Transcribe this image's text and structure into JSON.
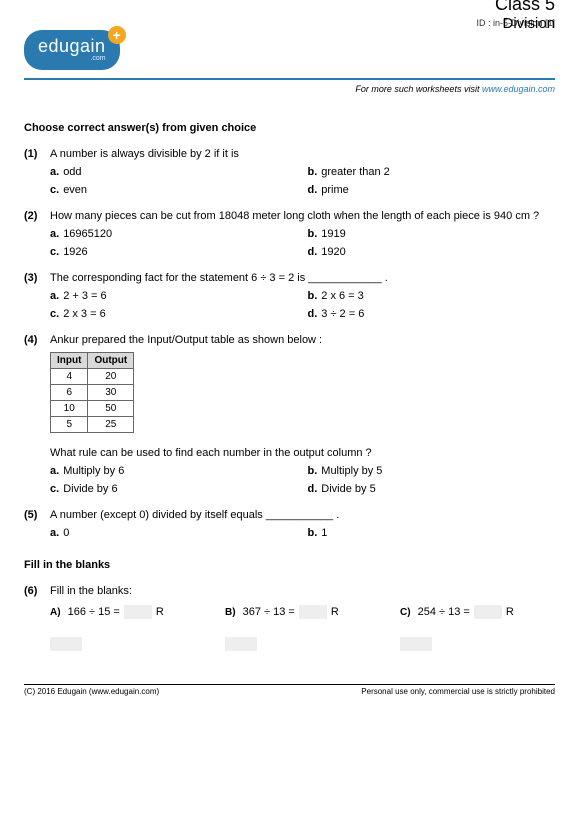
{
  "header": {
    "id_line": "ID : in-5-Division [1]",
    "logo_text": "edugain",
    "logo_sub": ".com",
    "logo_plus": "+",
    "class_title": "Class 5",
    "topic_title": "Division",
    "visit_prefix": "For more such worksheets visit ",
    "visit_link": "www.edugain.com"
  },
  "sections": {
    "mcq_title": "Choose correct answer(s) from given choice",
    "fill_title": "Fill in the blanks"
  },
  "q1": {
    "num": "(1)",
    "text": "A number is always divisible by 2 if it is",
    "a": "a.",
    "a_text": "odd",
    "b": "b.",
    "b_text": "greater than 2",
    "c": "c.",
    "c_text": "even",
    "d": "d.",
    "d_text": "prime"
  },
  "q2": {
    "num": "(2)",
    "text": "How many pieces can be cut from 18048 meter long cloth when the length of each piece is 940 cm ?",
    "a": "a.",
    "a_text": "16965120",
    "b": "b.",
    "b_text": "1919",
    "c": "c.",
    "c_text": "1926",
    "d": "d.",
    "d_text": "1920"
  },
  "q3": {
    "num": "(3)",
    "text": "The corresponding fact for the statement 6 ÷ 3 = 2 is ____________ .",
    "a": "a.",
    "a_text": "2 + 3 = 6",
    "b": "b.",
    "b_text": "2 x 6 = 3",
    "c": "c.",
    "c_text": "2 x 3 = 6",
    "d": "d.",
    "d_text": "3 ÷ 2 = 6"
  },
  "q4": {
    "num": "(4)",
    "text": "Ankur prepared the Input/Output table as shown below :",
    "table": {
      "h1": "Input",
      "h2": "Output",
      "rows": [
        {
          "in": "4",
          "out": "20"
        },
        {
          "in": "6",
          "out": "30"
        },
        {
          "in": "10",
          "out": "50"
        },
        {
          "in": "5",
          "out": "25"
        }
      ]
    },
    "subtext": "What rule can be used to find each number in the output column ?",
    "a": "a.",
    "a_text": "Multiply by 6",
    "b": "b.",
    "b_text": "Multiply by 5",
    "c": "c.",
    "c_text": "Divide by 6",
    "d": "d.",
    "d_text": "Divide by 5"
  },
  "q5": {
    "num": "(5)",
    "text": "A number (except 0) divided by itself equals ___________ .",
    "a": "a.",
    "a_text": "0",
    "b": "b.",
    "b_text": "1"
  },
  "q6": {
    "num": "(6)",
    "text": "Fill in the blanks:",
    "parts": {
      "A": {
        "label": "A)",
        "expr": "166 ÷ 15 =",
        "R": "R"
      },
      "B": {
        "label": "B)",
        "expr": "367 ÷ 13 =",
        "R": "R"
      },
      "C": {
        "label": "C)",
        "expr": "254 ÷ 13 =",
        "R": "R"
      }
    }
  },
  "footer": {
    "left": "(C) 2016 Edugain (www.edugain.com)",
    "right": "Personal use only, commercial use is strictly prohibited"
  }
}
